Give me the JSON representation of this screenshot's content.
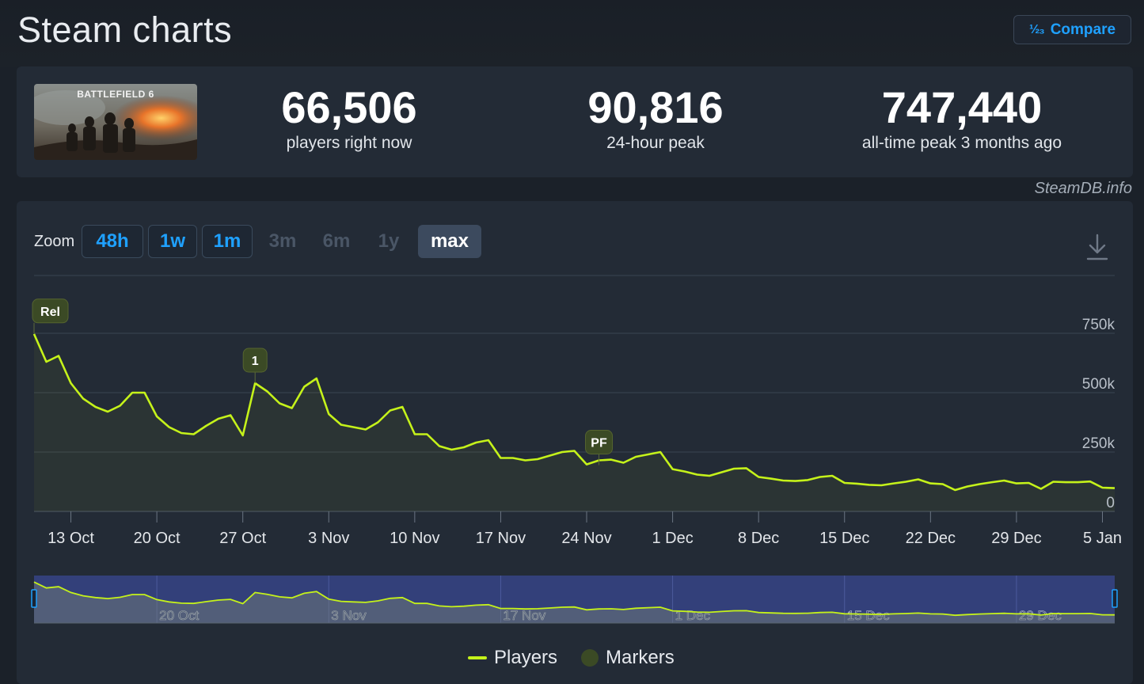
{
  "header": {
    "title": "Steam charts",
    "compare_label": "Compare"
  },
  "stats": {
    "game_title": "BATTLEFIELD 6",
    "current": {
      "value": "66,506",
      "label": "players right now"
    },
    "peak24": {
      "value": "90,816",
      "label": "24-hour peak"
    },
    "alltime": {
      "value": "747,440",
      "label": "all-time peak 3 months ago"
    }
  },
  "credit": "SteamDB.info",
  "zoom": {
    "label": "Zoom",
    "buttons": [
      {
        "label": "48h",
        "state": "enabled"
      },
      {
        "label": "1w",
        "state": "enabled"
      },
      {
        "label": "1m",
        "state": "enabled"
      },
      {
        "label": "3m",
        "state": "disabled"
      },
      {
        "label": "6m",
        "state": "disabled"
      },
      {
        "label": "1y",
        "state": "disabled"
      },
      {
        "label": "max",
        "state": "active"
      }
    ]
  },
  "legend": {
    "players": "Players",
    "markers": "Markers"
  },
  "colors": {
    "line": "#c5f21a",
    "marker": "#3b4a25",
    "accent": "#1fa1ff",
    "navigator": "#33407a"
  },
  "chart_data": {
    "type": "line",
    "x_start": "2025-10-10",
    "x_end": "2026-01-06",
    "ylim": [
      0,
      750000
    ],
    "yticks": [
      {
        "value": 0,
        "label": "0"
      },
      {
        "value": 250000,
        "label": "250k"
      },
      {
        "value": 500000,
        "label": "500k"
      },
      {
        "value": 750000,
        "label": "750k"
      }
    ],
    "xticks": [
      {
        "date": "2025-10-13",
        "label": "13 Oct"
      },
      {
        "date": "2025-10-20",
        "label": "20 Oct"
      },
      {
        "date": "2025-10-27",
        "label": "27 Oct"
      },
      {
        "date": "2025-11-03",
        "label": "3 Nov"
      },
      {
        "date": "2025-11-10",
        "label": "10 Nov"
      },
      {
        "date": "2025-11-17",
        "label": "17 Nov"
      },
      {
        "date": "2025-11-24",
        "label": "24 Nov"
      },
      {
        "date": "2025-12-01",
        "label": "1 Dec"
      },
      {
        "date": "2025-12-08",
        "label": "8 Dec"
      },
      {
        "date": "2025-12-15",
        "label": "15 Dec"
      },
      {
        "date": "2025-12-22",
        "label": "22 Dec"
      },
      {
        "date": "2025-12-29",
        "label": "29 Dec"
      },
      {
        "date": "2026-01-05",
        "label": "5 Jan"
      }
    ],
    "navigator_ticks": [
      {
        "date": "2025-10-20",
        "label": "20 Oct"
      },
      {
        "date": "2025-11-03",
        "label": "3 Nov"
      },
      {
        "date": "2025-11-17",
        "label": "17 Nov"
      },
      {
        "date": "2025-12-01",
        "label": "1 Dec"
      },
      {
        "date": "2025-12-15",
        "label": "15 Dec"
      },
      {
        "date": "2025-12-29",
        "label": "29 Dec"
      }
    ],
    "markers": [
      {
        "date": "2025-10-10",
        "label": "Rel",
        "value": 747440
      },
      {
        "date": "2025-10-28",
        "label": "1",
        "value": 540000
      },
      {
        "date": "2025-11-25",
        "label": "PF",
        "value": 195000
      }
    ],
    "series": [
      {
        "name": "Players",
        "points": [
          [
            "2025-10-10",
            747000
          ],
          [
            "2025-10-11",
            630000
          ],
          [
            "2025-10-12",
            655000
          ],
          [
            "2025-10-13",
            540000
          ],
          [
            "2025-10-14",
            475000
          ],
          [
            "2025-10-15",
            440000
          ],
          [
            "2025-10-16",
            420000
          ],
          [
            "2025-10-17",
            445000
          ],
          [
            "2025-10-18",
            500000
          ],
          [
            "2025-10-19",
            500000
          ],
          [
            "2025-10-20",
            400000
          ],
          [
            "2025-10-21",
            355000
          ],
          [
            "2025-10-22",
            330000
          ],
          [
            "2025-10-23",
            325000
          ],
          [
            "2025-10-24",
            360000
          ],
          [
            "2025-10-25",
            390000
          ],
          [
            "2025-10-26",
            405000
          ],
          [
            "2025-10-27",
            320000
          ],
          [
            "2025-10-28",
            540000
          ],
          [
            "2025-10-29",
            505000
          ],
          [
            "2025-10-30",
            455000
          ],
          [
            "2025-10-31",
            435000
          ],
          [
            "2025-11-01",
            525000
          ],
          [
            "2025-11-02",
            560000
          ],
          [
            "2025-11-03",
            410000
          ],
          [
            "2025-11-04",
            365000
          ],
          [
            "2025-11-05",
            355000
          ],
          [
            "2025-11-06",
            345000
          ],
          [
            "2025-11-07",
            375000
          ],
          [
            "2025-11-08",
            425000
          ],
          [
            "2025-11-09",
            440000
          ],
          [
            "2025-11-10",
            325000
          ],
          [
            "2025-11-11",
            325000
          ],
          [
            "2025-11-12",
            275000
          ],
          [
            "2025-11-13",
            260000
          ],
          [
            "2025-11-14",
            270000
          ],
          [
            "2025-11-15",
            290000
          ],
          [
            "2025-11-16",
            300000
          ],
          [
            "2025-11-17",
            225000
          ],
          [
            "2025-11-18",
            225000
          ],
          [
            "2025-11-19",
            215000
          ],
          [
            "2025-11-20",
            220000
          ],
          [
            "2025-11-21",
            235000
          ],
          [
            "2025-11-22",
            250000
          ],
          [
            "2025-11-23",
            255000
          ],
          [
            "2025-11-24",
            198000
          ],
          [
            "2025-11-25",
            215000
          ],
          [
            "2025-11-26",
            218000
          ],
          [
            "2025-11-27",
            205000
          ],
          [
            "2025-11-28",
            230000
          ],
          [
            "2025-11-29",
            240000
          ],
          [
            "2025-11-30",
            250000
          ],
          [
            "2025-12-01",
            178000
          ],
          [
            "2025-12-02",
            168000
          ],
          [
            "2025-12-03",
            155000
          ],
          [
            "2025-12-04",
            150000
          ],
          [
            "2025-12-05",
            165000
          ],
          [
            "2025-12-06",
            180000
          ],
          [
            "2025-12-07",
            182000
          ],
          [
            "2025-12-08",
            145000
          ],
          [
            "2025-12-09",
            138000
          ],
          [
            "2025-12-10",
            130000
          ],
          [
            "2025-12-11",
            128000
          ],
          [
            "2025-12-12",
            132000
          ],
          [
            "2025-12-13",
            145000
          ],
          [
            "2025-12-14",
            150000
          ],
          [
            "2025-12-15",
            120000
          ],
          [
            "2025-12-16",
            117000
          ],
          [
            "2025-12-17",
            112000
          ],
          [
            "2025-12-18",
            110000
          ],
          [
            "2025-12-19",
            118000
          ],
          [
            "2025-12-20",
            125000
          ],
          [
            "2025-12-21",
            135000
          ],
          [
            "2025-12-22",
            118000
          ],
          [
            "2025-12-23",
            115000
          ],
          [
            "2025-12-24",
            90000
          ],
          [
            "2025-12-25",
            105000
          ],
          [
            "2025-12-26",
            115000
          ],
          [
            "2025-12-27",
            123000
          ],
          [
            "2025-12-28",
            130000
          ],
          [
            "2025-12-29",
            118000
          ],
          [
            "2025-12-30",
            120000
          ],
          [
            "2025-12-31",
            95000
          ],
          [
            "2026-01-01",
            125000
          ],
          [
            "2026-01-02",
            123000
          ],
          [
            "2026-01-03",
            123000
          ],
          [
            "2026-01-04",
            126000
          ],
          [
            "2026-01-05",
            100000
          ],
          [
            "2026-01-06",
            98000
          ]
        ]
      }
    ]
  }
}
